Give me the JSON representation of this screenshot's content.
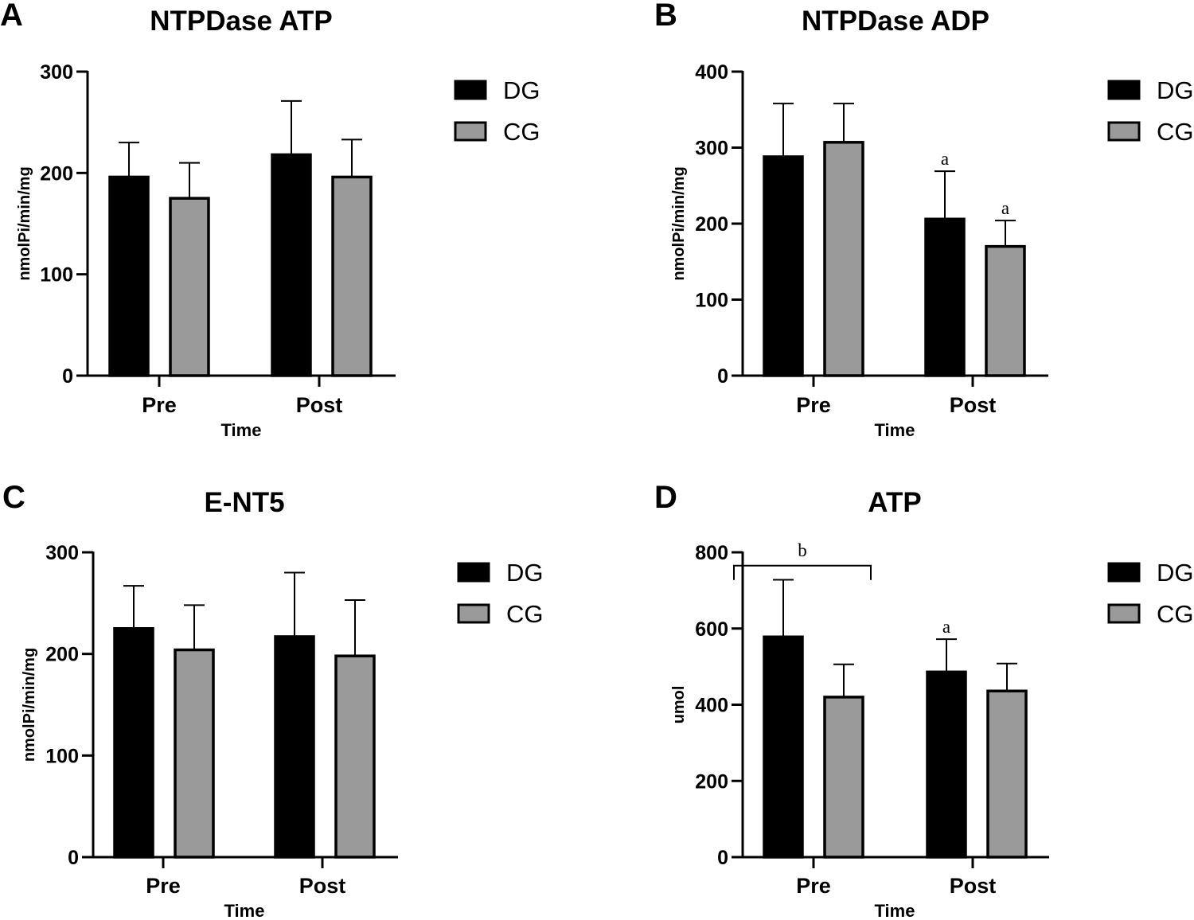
{
  "chart_data": [
    {
      "type": "bar",
      "panel": "A",
      "title": "NTPDase ATP",
      "xlabel": "Time",
      "ylabel": "nmolPi/min/mg",
      "categories": [
        "Pre",
        "Post"
      ],
      "ylim": [
        0,
        300
      ],
      "yticks": [
        0,
        100,
        200,
        300
      ],
      "legend": "right",
      "series": [
        {
          "name": "DG",
          "color": "#000000",
          "values": [
            196,
            218
          ],
          "errors": [
            34,
            53
          ]
        },
        {
          "name": "CG",
          "color": "#9a9a9a",
          "values": [
            175,
            196
          ],
          "errors": [
            35,
            37
          ]
        }
      ],
      "annotations": []
    },
    {
      "type": "bar",
      "panel": "B",
      "title": "NTPDase ADP",
      "xlabel": "Time",
      "ylabel": "nmolPi/min/mg",
      "categories": [
        "Pre",
        "Post"
      ],
      "ylim": [
        0,
        400
      ],
      "yticks": [
        0,
        100,
        200,
        300,
        400
      ],
      "legend": "right",
      "series": [
        {
          "name": "DG",
          "color": "#000000",
          "values": [
            288,
            206
          ],
          "errors": [
            70,
            63
          ]
        },
        {
          "name": "CG",
          "color": "#9a9a9a",
          "values": [
            307,
            170
          ],
          "errors": [
            51,
            34
          ]
        }
      ],
      "annotations": [
        {
          "text": "a",
          "category": 1,
          "series": 0
        },
        {
          "text": "a",
          "category": 1,
          "series": 1
        }
      ]
    },
    {
      "type": "bar",
      "panel": "C",
      "title": "E-NT5",
      "xlabel": "Time",
      "ylabel": "nmolPi/min/mg",
      "categories": [
        "Pre",
        "Post"
      ],
      "ylim": [
        0,
        300
      ],
      "yticks": [
        0,
        100,
        200,
        300
      ],
      "legend": "right",
      "series": [
        {
          "name": "DG",
          "color": "#000000",
          "values": [
            225,
            217
          ],
          "errors": [
            42,
            63
          ]
        },
        {
          "name": "CG",
          "color": "#9a9a9a",
          "values": [
            204,
            198
          ],
          "errors": [
            44,
            55
          ]
        }
      ],
      "annotations": []
    },
    {
      "type": "bar",
      "panel": "D",
      "title": "ATP",
      "xlabel": "Time",
      "ylabel": "umol",
      "categories": [
        "Pre",
        "Post"
      ],
      "ylim": [
        0,
        800
      ],
      "yticks": [
        0,
        200,
        400,
        600,
        800
      ],
      "legend": "right",
      "series": [
        {
          "name": "DG",
          "color": "#000000",
          "values": [
            578,
            486
          ],
          "errors": [
            150,
            86
          ]
        },
        {
          "name": "CG",
          "color": "#9a9a9a",
          "values": [
            420,
            436
          ],
          "errors": [
            86,
            72
          ]
        }
      ],
      "annotations": [
        {
          "text": "a",
          "category": 1,
          "series": 0
        }
      ],
      "brackets": [
        {
          "text": "b",
          "category": 0,
          "value": 765
        }
      ]
    }
  ]
}
